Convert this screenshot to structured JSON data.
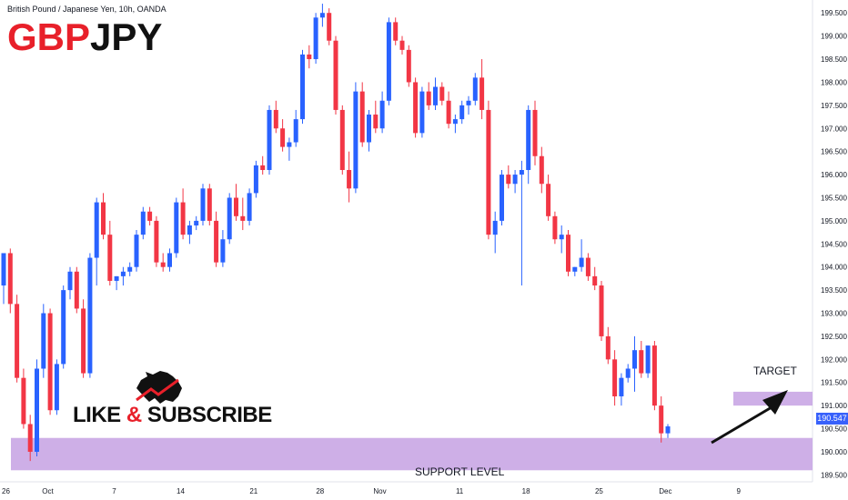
{
  "header": {
    "instrument": "British Pound / Japanese Yen, 10h, OANDA",
    "symbol_part1": "GBP",
    "symbol_part2": "JPY"
  },
  "overlay": {
    "like_word": "LIKE",
    "amp": "&",
    "subscribe_word": "SUBSCRIBE",
    "target_label": "TARGET",
    "support_label": "SUPPORT LEVEL"
  },
  "price_tag": "190.547",
  "colors": {
    "up": "#2962ff",
    "down": "#f23645",
    "zone": "#c9a6e4",
    "accent_red": "#e8202a"
  },
  "chart_data": {
    "type": "candlestick",
    "y_ticks": [
      "189.500",
      "190.000",
      "190.500",
      "191.000",
      "191.500",
      "192.000",
      "192.500",
      "193.000",
      "193.500",
      "194.000",
      "194.500",
      "195.000",
      "195.500",
      "196.000",
      "196.500",
      "197.000",
      "197.500",
      "198.000",
      "198.500",
      "199.000",
      "199.500"
    ],
    "ylim": [
      189.35,
      199.78
    ],
    "x_ticks": [
      {
        "label": "26",
        "index": 0
      },
      {
        "label": "Oct",
        "index": 5
      },
      {
        "label": "7",
        "index": 15
      },
      {
        "label": "14",
        "index": 25
      },
      {
        "label": "21",
        "index": 36
      },
      {
        "label": "28",
        "index": 46
      },
      {
        "label": "Nov",
        "index": 55
      },
      {
        "label": "11",
        "index": 67
      },
      {
        "label": "18",
        "index": 77
      },
      {
        "label": "25",
        "index": 88
      },
      {
        "label": "Dec",
        "index": 98
      },
      {
        "label": "9",
        "index": 109
      }
    ],
    "bars": 111,
    "candles": [
      [
        193.6,
        194.3,
        193.2,
        194.3
      ],
      [
        194.3,
        194.4,
        193.0,
        193.2
      ],
      [
        193.2,
        193.4,
        191.5,
        191.6
      ],
      [
        191.6,
        191.8,
        190.5,
        190.6
      ],
      [
        190.6,
        190.8,
        189.8,
        190.0
      ],
      [
        190.0,
        192.0,
        189.9,
        191.8
      ],
      [
        191.8,
        193.2,
        191.6,
        193.0
      ],
      [
        193.0,
        193.1,
        190.8,
        190.9
      ],
      [
        190.9,
        192.0,
        190.8,
        191.9
      ],
      [
        191.9,
        193.6,
        191.8,
        193.5
      ],
      [
        193.5,
        194.0,
        193.3,
        193.9
      ],
      [
        193.9,
        194.0,
        193.0,
        193.1
      ],
      [
        193.1,
        193.3,
        191.6,
        191.7
      ],
      [
        191.7,
        194.3,
        191.6,
        194.2
      ],
      [
        194.2,
        195.5,
        193.6,
        195.4
      ],
      [
        195.4,
        195.6,
        194.6,
        194.7
      ],
      [
        194.7,
        195.0,
        193.6,
        193.7
      ],
      [
        193.7,
        193.8,
        193.5,
        193.8
      ],
      [
        193.8,
        194.0,
        193.6,
        193.9
      ],
      [
        193.9,
        194.1,
        193.8,
        194.0
      ],
      [
        194.0,
        194.8,
        193.9,
        194.7
      ],
      [
        194.7,
        195.3,
        194.6,
        195.2
      ],
      [
        195.2,
        195.3,
        194.9,
        195.0
      ],
      [
        195.0,
        195.1,
        194.0,
        194.1
      ],
      [
        194.1,
        194.3,
        193.9,
        194.0
      ],
      [
        194.0,
        194.4,
        193.9,
        194.3
      ],
      [
        194.3,
        195.5,
        194.2,
        195.4
      ],
      [
        195.4,
        195.7,
        194.6,
        194.7
      ],
      [
        194.7,
        195.0,
        194.5,
        194.9
      ],
      [
        194.9,
        195.1,
        194.8,
        195.0
      ],
      [
        195.0,
        195.8,
        194.9,
        195.7
      ],
      [
        195.7,
        195.8,
        194.9,
        195.0
      ],
      [
        195.0,
        195.2,
        194.0,
        194.1
      ],
      [
        194.1,
        194.8,
        194.0,
        194.6
      ],
      [
        194.6,
        195.6,
        194.5,
        195.5
      ],
      [
        195.5,
        195.8,
        195.0,
        195.1
      ],
      [
        195.1,
        195.5,
        194.8,
        195.0
      ],
      [
        195.0,
        195.7,
        194.9,
        195.6
      ],
      [
        195.6,
        196.3,
        195.5,
        196.2
      ],
      [
        196.2,
        196.4,
        196.0,
        196.1
      ],
      [
        196.1,
        197.5,
        196.0,
        197.4
      ],
      [
        197.4,
        197.6,
        196.9,
        197.0
      ],
      [
        197.0,
        197.2,
        196.5,
        196.6
      ],
      [
        196.6,
        196.8,
        196.3,
        196.7
      ],
      [
        196.7,
        197.4,
        196.6,
        197.2
      ],
      [
        197.2,
        198.7,
        197.1,
        198.6
      ],
      [
        198.6,
        198.8,
        198.3,
        198.5
      ],
      [
        198.5,
        199.5,
        198.4,
        199.4
      ],
      [
        199.4,
        199.7,
        199.2,
        199.5
      ],
      [
        199.5,
        199.6,
        198.8,
        198.9
      ],
      [
        198.9,
        199.0,
        197.3,
        197.4
      ],
      [
        197.4,
        197.5,
        196.0,
        196.1
      ],
      [
        196.1,
        196.5,
        195.4,
        195.7
      ],
      [
        195.7,
        198.0,
        195.6,
        197.8
      ],
      [
        197.8,
        198.0,
        196.6,
        196.7
      ],
      [
        196.7,
        197.4,
        196.5,
        197.3
      ],
      [
        197.3,
        197.6,
        196.9,
        197.0
      ],
      [
        197.0,
        197.8,
        196.9,
        197.6
      ],
      [
        197.6,
        199.4,
        197.5,
        199.3
      ],
      [
        199.3,
        199.4,
        198.8,
        198.9
      ],
      [
        198.9,
        199.0,
        198.6,
        198.7
      ],
      [
        198.7,
        198.8,
        197.9,
        198.0
      ],
      [
        198.0,
        198.1,
        196.8,
        196.9
      ],
      [
        196.9,
        197.9,
        196.8,
        197.8
      ],
      [
        197.8,
        198.0,
        197.4,
        197.5
      ],
      [
        197.5,
        198.1,
        197.4,
        197.9
      ],
      [
        197.9,
        198.0,
        197.5,
        197.6
      ],
      [
        197.6,
        197.8,
        197.0,
        197.1
      ],
      [
        197.1,
        197.3,
        196.9,
        197.2
      ],
      [
        197.2,
        197.6,
        197.1,
        197.5
      ],
      [
        197.5,
        197.7,
        197.3,
        197.6
      ],
      [
        197.6,
        198.2,
        197.5,
        198.1
      ],
      [
        198.1,
        198.5,
        197.2,
        197.4
      ],
      [
        197.4,
        197.6,
        194.6,
        194.7
      ],
      [
        194.7,
        195.2,
        194.3,
        195.0
      ],
      [
        195.0,
        196.1,
        194.9,
        196.0
      ],
      [
        196.0,
        196.2,
        195.7,
        195.8
      ],
      [
        195.8,
        196.1,
        195.6,
        196.0
      ],
      [
        196.0,
        196.3,
        193.6,
        196.1
      ],
      [
        196.1,
        197.5,
        195.8,
        197.4
      ],
      [
        197.4,
        197.6,
        196.2,
        196.4
      ],
      [
        196.4,
        196.6,
        195.6,
        195.8
      ],
      [
        195.8,
        196.0,
        195.0,
        195.1
      ],
      [
        195.1,
        195.2,
        194.5,
        194.6
      ],
      [
        194.6,
        194.9,
        194.3,
        194.7
      ],
      [
        194.7,
        194.8,
        193.8,
        193.9
      ],
      [
        193.9,
        194.0,
        193.8,
        194.0
      ],
      [
        194.0,
        194.6,
        193.9,
        194.2
      ],
      [
        194.2,
        194.3,
        193.7,
        193.8
      ],
      [
        193.8,
        194.0,
        193.5,
        193.6
      ],
      [
        193.6,
        193.7,
        192.4,
        192.5
      ],
      [
        192.5,
        192.7,
        191.9,
        192.0
      ],
      [
        192.0,
        192.2,
        191.0,
        191.2
      ],
      [
        191.2,
        191.7,
        191.0,
        191.6
      ],
      [
        191.6,
        191.9,
        191.5,
        191.8
      ],
      [
        191.8,
        192.5,
        191.3,
        192.2
      ],
      [
        192.2,
        192.4,
        191.6,
        191.7
      ],
      [
        191.7,
        192.3,
        191.6,
        192.3
      ],
      [
        192.3,
        192.4,
        190.9,
        191.0
      ],
      [
        191.0,
        191.2,
        190.2,
        190.4
      ],
      [
        190.4,
        190.6,
        190.3,
        190.55
      ]
    ],
    "zones": [
      {
        "label": "SUPPORT LEVEL",
        "y_low": 189.6,
        "y_high": 190.3
      },
      {
        "label": "TARGET",
        "y_low": 191.0,
        "y_high": 191.3
      }
    ]
  }
}
